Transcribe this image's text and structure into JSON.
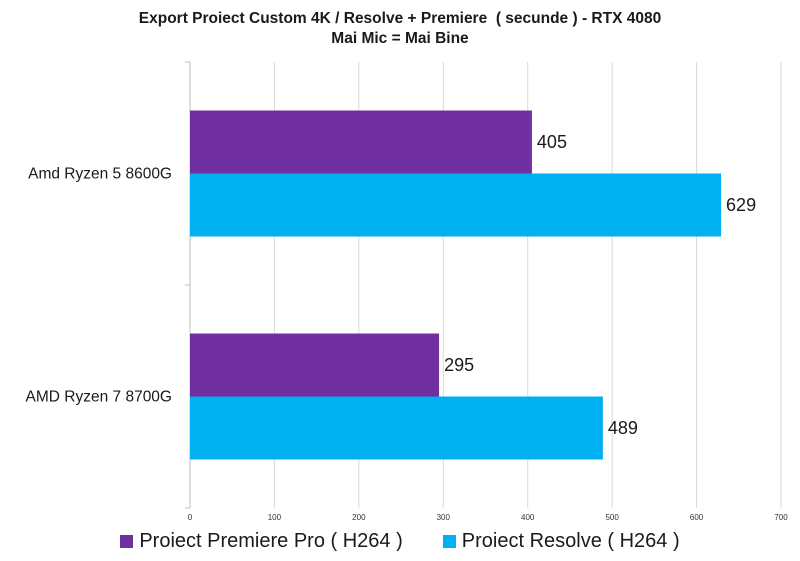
{
  "chart_data": {
    "type": "bar",
    "orientation": "horizontal",
    "title": "Export Proiect Custom 4K / Resolve + Premiere  ( secunde ) - RTX 4080",
    "subtitle": "Mai Mic = Mai Bine",
    "categories": [
      "Amd Ryzen 5 8600G",
      "AMD Ryzen 7 8700G"
    ],
    "series": [
      {
        "name": "Proiect Premiere Pro ( H264 )",
        "values": [
          405,
          295
        ],
        "color": "#7030a0"
      },
      {
        "name": "Proiect Resolve ( H264 )",
        "values": [
          629,
          489
        ],
        "color": "#00b0f0"
      }
    ],
    "xlim": [
      0,
      700
    ],
    "xticks": [
      0,
      100,
      200,
      300,
      400,
      500,
      600,
      700
    ],
    "grid": true,
    "legend": "bottom"
  }
}
